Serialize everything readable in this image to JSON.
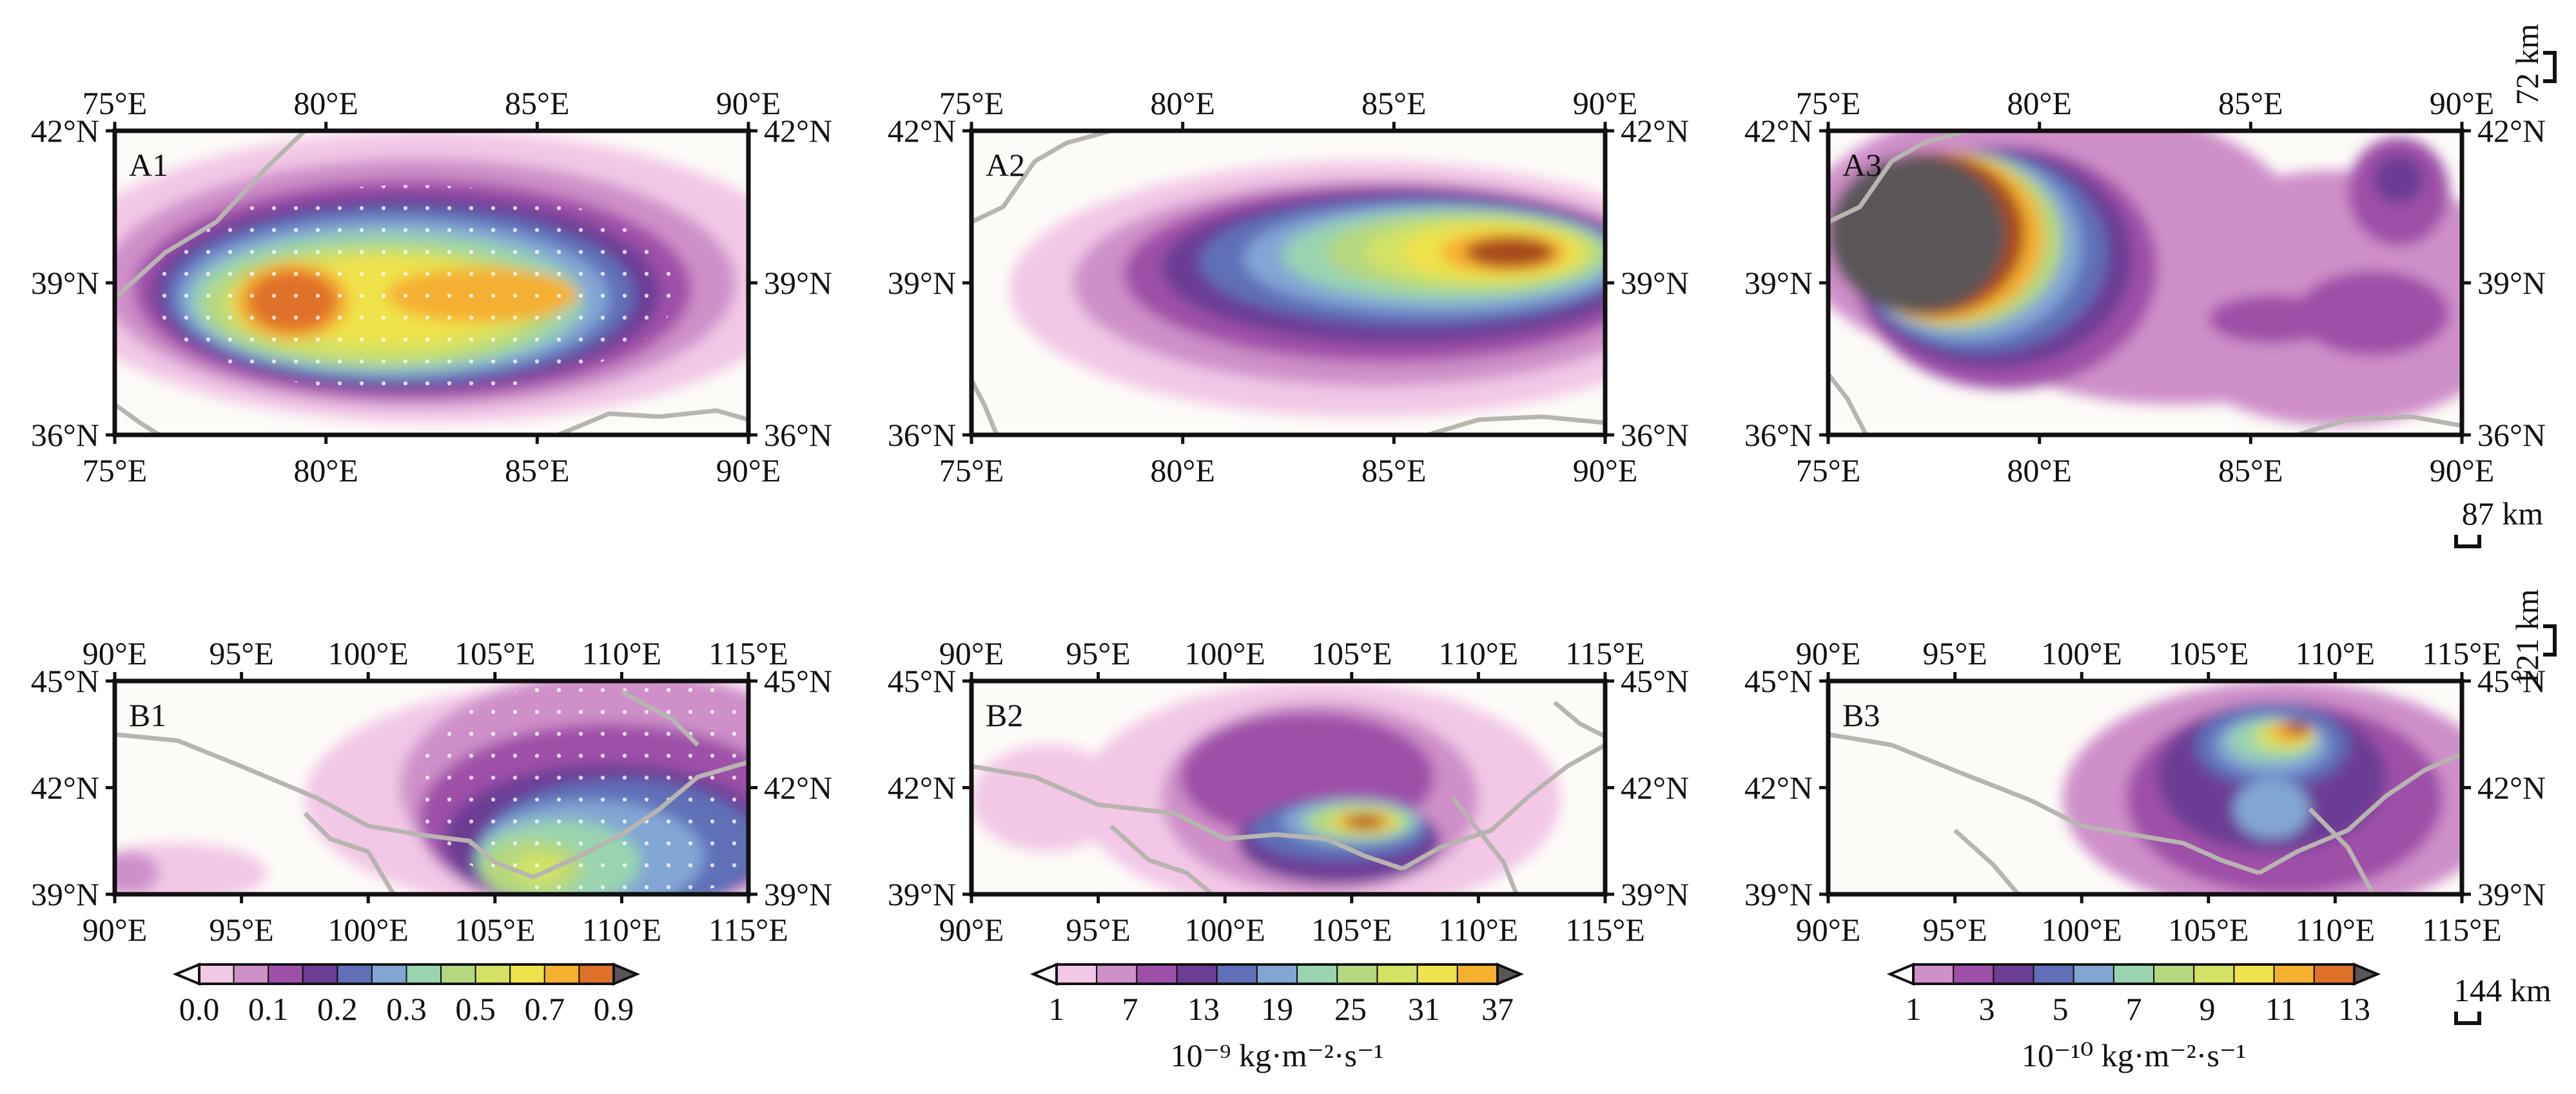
{
  "panels": [
    {
      "label": "A1",
      "x_ticks": [
        "75°E",
        "80°E",
        "85°E",
        "90°E"
      ],
      "y_ticks": [
        "42°N",
        "39°N",
        "36°N"
      ],
      "scale_bar": "72 km",
      "palette": "p1",
      "stipple": true,
      "blobs": [
        {
          "cx": 0.5,
          "cy": 0.48,
          "rx": 0.6,
          "ry": 0.48,
          "lvl": 0
        },
        {
          "cx": 0.48,
          "cy": 0.5,
          "rx": 0.5,
          "ry": 0.41,
          "lvl": 1
        },
        {
          "cx": 0.47,
          "cy": 0.52,
          "rx": 0.44,
          "ry": 0.36,
          "lvl": 2
        },
        {
          "cx": 0.46,
          "cy": 0.53,
          "rx": 0.4,
          "ry": 0.32,
          "lvl": 3
        },
        {
          "cx": 0.45,
          "cy": 0.54,
          "rx": 0.37,
          "ry": 0.29,
          "lvl": 4
        },
        {
          "cx": 0.44,
          "cy": 0.55,
          "rx": 0.34,
          "ry": 0.26,
          "lvl": 5
        },
        {
          "cx": 0.43,
          "cy": 0.56,
          "rx": 0.31,
          "ry": 0.23,
          "lvl": 6
        },
        {
          "cx": 0.42,
          "cy": 0.57,
          "rx": 0.28,
          "ry": 0.2,
          "lvl": 7
        },
        {
          "cx": 0.42,
          "cy": 0.57,
          "rx": 0.25,
          "ry": 0.18,
          "lvl": 8
        },
        {
          "cx": 0.43,
          "cy": 0.56,
          "rx": 0.2,
          "ry": 0.14,
          "lvl": 9
        },
        {
          "cx": 0.28,
          "cy": 0.56,
          "rx": 0.09,
          "ry": 0.13,
          "lvl": 10
        },
        {
          "cx": 0.58,
          "cy": 0.54,
          "rx": 0.15,
          "ry": 0.09,
          "lvl": 10
        },
        {
          "cx": 0.28,
          "cy": 0.56,
          "rx": 0.07,
          "ry": 0.1,
          "lvl": 11
        }
      ]
    },
    {
      "label": "A2",
      "x_ticks": [
        "75°E",
        "80°E",
        "85°E",
        "90°E"
      ],
      "y_ticks": [
        "42°N",
        "39°N",
        "36°N"
      ],
      "scale_bar": "87 km",
      "palette": "p2",
      "stipple": false,
      "blobs": [
        {
          "cx": 0.62,
          "cy": 0.52,
          "rx": 0.56,
          "ry": 0.42,
          "lvl": 0
        },
        {
          "cx": 0.64,
          "cy": 0.5,
          "rx": 0.48,
          "ry": 0.34,
          "lvl": 1
        },
        {
          "cx": 0.66,
          "cy": 0.47,
          "rx": 0.42,
          "ry": 0.29,
          "lvl": 2
        },
        {
          "cx": 0.68,
          "cy": 0.45,
          "rx": 0.38,
          "ry": 0.25,
          "lvl": 3
        },
        {
          "cx": 0.7,
          "cy": 0.43,
          "rx": 0.34,
          "ry": 0.21,
          "lvl": 4
        },
        {
          "cx": 0.73,
          "cy": 0.42,
          "rx": 0.3,
          "ry": 0.18,
          "lvl": 5
        },
        {
          "cx": 0.75,
          "cy": 0.41,
          "rx": 0.26,
          "ry": 0.15,
          "lvl": 6
        },
        {
          "cx": 0.78,
          "cy": 0.4,
          "rx": 0.22,
          "ry": 0.13,
          "lvl": 7
        },
        {
          "cx": 0.8,
          "cy": 0.4,
          "rx": 0.18,
          "ry": 0.11,
          "lvl": 8
        },
        {
          "cx": 0.82,
          "cy": 0.4,
          "rx": 0.14,
          "ry": 0.09,
          "lvl": 9
        },
        {
          "cx": 0.84,
          "cy": 0.4,
          "rx": 0.1,
          "ry": 0.07,
          "lvl": 10
        },
        {
          "cx": 0.85,
          "cy": 0.4,
          "rx": 0.07,
          "ry": 0.05,
          "lvl": 11
        }
      ]
    },
    {
      "label": "A3",
      "x_ticks": [
        "75°E",
        "80°E",
        "85°E",
        "90°E"
      ],
      "y_ticks": [
        "42°N",
        "39°N",
        "36°N"
      ],
      "scale_bar": "121 km",
      "palette": "p3",
      "stipple": false,
      "blobs": [
        {
          "cx": 0.35,
          "cy": 0.35,
          "rx": 0.4,
          "ry": 0.45,
          "lvl": 0
        },
        {
          "cx": 0.8,
          "cy": 0.55,
          "rx": 0.3,
          "ry": 0.42,
          "lvl": 0
        },
        {
          "cx": 0.55,
          "cy": 0.7,
          "rx": 0.28,
          "ry": 0.2,
          "lvl": 0
        },
        {
          "cx": 0.9,
          "cy": 0.2,
          "rx": 0.08,
          "ry": 0.18,
          "lvl": 1
        },
        {
          "cx": 0.86,
          "cy": 0.6,
          "rx": 0.12,
          "ry": 0.14,
          "lvl": 1
        },
        {
          "cx": 0.7,
          "cy": 0.62,
          "rx": 0.1,
          "ry": 0.08,
          "lvl": 1
        },
        {
          "cx": 0.28,
          "cy": 0.45,
          "rx": 0.24,
          "ry": 0.4,
          "lvl": 1
        },
        {
          "cx": 0.9,
          "cy": 0.16,
          "rx": 0.04,
          "ry": 0.08,
          "lvl": 2
        },
        {
          "cx": 0.26,
          "cy": 0.42,
          "rx": 0.22,
          "ry": 0.36,
          "lvl": 2
        },
        {
          "cx": 0.24,
          "cy": 0.4,
          "rx": 0.2,
          "ry": 0.33,
          "lvl": 3
        },
        {
          "cx": 0.22,
          "cy": 0.38,
          "rx": 0.18,
          "ry": 0.31,
          "lvl": 4
        },
        {
          "cx": 0.2,
          "cy": 0.36,
          "rx": 0.17,
          "ry": 0.29,
          "lvl": 6
        },
        {
          "cx": 0.18,
          "cy": 0.35,
          "rx": 0.16,
          "ry": 0.28,
          "lvl": 9
        },
        {
          "cx": 0.16,
          "cy": 0.34,
          "rx": 0.15,
          "ry": 0.27,
          "lvl": 11
        },
        {
          "cx": 0.14,
          "cy": 0.34,
          "rx": 0.14,
          "ry": 0.26,
          "lvl": 12
        }
      ]
    },
    {
      "label": "B1",
      "x_ticks": [
        "90°E",
        "95°E",
        "100°E",
        "105°E",
        "110°E",
        "115°E"
      ],
      "y_ticks": [
        "45°N",
        "42°N",
        "39°N"
      ],
      "scale_bar": "144 km",
      "palette": "p1",
      "stipple": true,
      "blobs": [
        {
          "cx": 0.75,
          "cy": 0.55,
          "rx": 0.45,
          "ry": 0.55,
          "lvl": 0
        },
        {
          "cx": 0.1,
          "cy": 0.9,
          "rx": 0.14,
          "ry": 0.14,
          "lvl": 0
        },
        {
          "cx": 0.8,
          "cy": 0.5,
          "rx": 0.35,
          "ry": 0.55,
          "lvl": 1
        },
        {
          "cx": 0.02,
          "cy": 0.9,
          "rx": 0.05,
          "ry": 0.1,
          "lvl": 1
        },
        {
          "cx": 0.78,
          "cy": 0.65,
          "rx": 0.3,
          "ry": 0.45,
          "lvl": 2
        },
        {
          "cx": 0.78,
          "cy": 0.75,
          "rx": 0.26,
          "ry": 0.36,
          "lvl": 3
        },
        {
          "cx": 0.8,
          "cy": 0.78,
          "rx": 0.22,
          "ry": 0.32,
          "lvl": 4
        },
        {
          "cx": 0.75,
          "cy": 0.82,
          "rx": 0.18,
          "ry": 0.26,
          "lvl": 5
        },
        {
          "cx": 0.7,
          "cy": 0.85,
          "rx": 0.13,
          "ry": 0.2,
          "lvl": 6
        },
        {
          "cx": 0.66,
          "cy": 0.88,
          "rx": 0.08,
          "ry": 0.14,
          "lvl": 7
        },
        {
          "cx": 0.67,
          "cy": 0.88,
          "rx": 0.04,
          "ry": 0.07,
          "lvl": 8
        }
      ]
    },
    {
      "label": "B2",
      "x_ticks": [
        "90°E",
        "95°E",
        "100°E",
        "105°E",
        "110°E",
        "115°E"
      ],
      "y_ticks": [
        "45°N",
        "42°N",
        "39°N"
      ],
      "scale_bar": "",
      "palette": "p2",
      "stipple": false,
      "blobs": [
        {
          "cx": 0.55,
          "cy": 0.55,
          "rx": 0.38,
          "ry": 0.55,
          "lvl": 0
        },
        {
          "cx": 0.12,
          "cy": 0.55,
          "rx": 0.12,
          "ry": 0.25,
          "lvl": 0
        },
        {
          "cx": 0.55,
          "cy": 0.55,
          "rx": 0.25,
          "ry": 0.45,
          "lvl": 1
        },
        {
          "cx": 0.53,
          "cy": 0.45,
          "rx": 0.2,
          "ry": 0.3,
          "lvl": 2
        },
        {
          "cx": 0.58,
          "cy": 0.75,
          "rx": 0.16,
          "ry": 0.2,
          "lvl": 3
        },
        {
          "cx": 0.58,
          "cy": 0.7,
          "rx": 0.14,
          "ry": 0.14,
          "lvl": 4
        },
        {
          "cx": 0.6,
          "cy": 0.66,
          "rx": 0.11,
          "ry": 0.11,
          "lvl": 5
        },
        {
          "cx": 0.61,
          "cy": 0.66,
          "rx": 0.09,
          "ry": 0.09,
          "lvl": 6
        },
        {
          "cx": 0.61,
          "cy": 0.66,
          "rx": 0.075,
          "ry": 0.075,
          "lvl": 7
        },
        {
          "cx": 0.62,
          "cy": 0.66,
          "rx": 0.06,
          "ry": 0.06,
          "lvl": 8
        },
        {
          "cx": 0.62,
          "cy": 0.66,
          "rx": 0.045,
          "ry": 0.045,
          "lvl": 10
        },
        {
          "cx": 0.62,
          "cy": 0.66,
          "rx": 0.03,
          "ry": 0.03,
          "lvl": 11
        }
      ]
    },
    {
      "label": "B3",
      "x_ticks": [
        "90°E",
        "95°E",
        "100°E",
        "105°E",
        "110°E",
        "115°E"
      ],
      "y_ticks": [
        "45°N",
        "42°N",
        "39°N"
      ],
      "scale_bar": "",
      "palette": "p3",
      "stipple": false,
      "blobs": [
        {
          "cx": 0.72,
          "cy": 0.55,
          "rx": 0.35,
          "ry": 0.55,
          "lvl": 0
        },
        {
          "cx": 0.72,
          "cy": 0.55,
          "rx": 0.25,
          "ry": 0.45,
          "lvl": 1
        },
        {
          "cx": 0.7,
          "cy": 0.45,
          "rx": 0.18,
          "ry": 0.35,
          "lvl": 2
        },
        {
          "cx": 0.7,
          "cy": 0.3,
          "rx": 0.12,
          "ry": 0.2,
          "lvl": 3
        },
        {
          "cx": 0.7,
          "cy": 0.6,
          "rx": 0.06,
          "ry": 0.14,
          "lvl": 4
        },
        {
          "cx": 0.7,
          "cy": 0.3,
          "rx": 0.09,
          "ry": 0.14,
          "lvl": 4
        },
        {
          "cx": 0.7,
          "cy": 0.28,
          "rx": 0.07,
          "ry": 0.1,
          "lvl": 5
        },
        {
          "cx": 0.72,
          "cy": 0.26,
          "rx": 0.05,
          "ry": 0.07,
          "lvl": 7
        },
        {
          "cx": 0.73,
          "cy": 0.24,
          "rx": 0.035,
          "ry": 0.05,
          "lvl": 9
        },
        {
          "cx": 0.74,
          "cy": 0.22,
          "rx": 0.02,
          "ry": 0.03,
          "lvl": 11
        }
      ]
    }
  ],
  "colorbars": [
    {
      "ticks": [
        "0.0",
        "0.1",
        "0.2",
        "0.3",
        "0.5",
        "0.7",
        "0.9"
      ],
      "unit": "",
      "palette": "p1"
    },
    {
      "ticks": [
        "1",
        "7",
        "13",
        "19",
        "25",
        "31",
        "37"
      ],
      "unit": "10⁻⁹ kg·m⁻²·s⁻¹",
      "palette": "p2"
    },
    {
      "ticks": [
        "1",
        "3",
        "5",
        "7",
        "9",
        "11",
        "13"
      ],
      "unit": "10⁻¹⁰ kg·m⁻²·s⁻¹",
      "palette": "p3"
    }
  ],
  "colors": {
    "background": "#fdfbf8",
    "boundary": "#b8b4b0",
    "p1": [
      "#f2c8e6",
      "#cf8fc9",
      "#9e4fa8",
      "#6b3d94",
      "#5f6fb8",
      "#82a6d4",
      "#98d4b0",
      "#b5d87e",
      "#d3e265",
      "#f0e24a",
      "#f5b030",
      "#e0712a",
      "#a9481e",
      "#5a5658"
    ],
    "p2": [
      "#f2c8e6",
      "#cf8fc9",
      "#9e4fa8",
      "#6b3d94",
      "#5f6fb8",
      "#82a6d4",
      "#98d4b0",
      "#b5d87e",
      "#d3e265",
      "#f0e24a",
      "#f5b030",
      "#a9481e",
      "#5a5658"
    ],
    "p3": [
      "#cf8fc9",
      "#9e4fa8",
      "#6b3d94",
      "#5f6fb8",
      "#82a6d4",
      "#98d4b0",
      "#b5d87e",
      "#d3e265",
      "#f0e24a",
      "#f5b030",
      "#e0712a",
      "#a9481e",
      "#5a5658"
    ]
  }
}
